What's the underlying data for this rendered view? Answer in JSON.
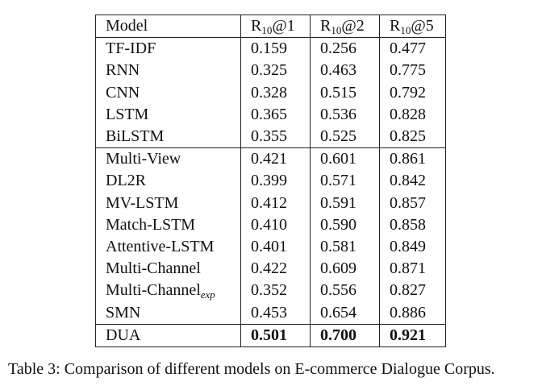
{
  "table": {
    "header": [
      {
        "main": "Model"
      },
      {
        "main": "R",
        "sub": "10",
        "tail": "@1"
      },
      {
        "main": "R",
        "sub": "10",
        "tail": "@2"
      },
      {
        "main": "R",
        "sub": "10",
        "tail": "@5"
      }
    ],
    "groups": [
      [
        [
          {
            "main": "TF-IDF"
          },
          "0.159",
          "0.256",
          "0.477"
        ],
        [
          {
            "main": "RNN"
          },
          "0.325",
          "0.463",
          "0.775"
        ],
        [
          {
            "main": "CNN"
          },
          "0.328",
          "0.515",
          "0.792"
        ],
        [
          {
            "main": "LSTM"
          },
          "0.365",
          "0.536",
          "0.828"
        ],
        [
          {
            "main": "BiLSTM"
          },
          "0.355",
          "0.525",
          "0.825"
        ]
      ],
      [
        [
          {
            "main": "Multi-View"
          },
          "0.421",
          "0.601",
          "0.861"
        ],
        [
          {
            "main": "DL2R"
          },
          "0.399",
          "0.571",
          "0.842"
        ],
        [
          {
            "main": "MV-LSTM"
          },
          "0.412",
          "0.591",
          "0.857"
        ],
        [
          {
            "main": "Match-LSTM"
          },
          "0.410",
          "0.590",
          "0.858"
        ],
        [
          {
            "main": "Attentive-LSTM"
          },
          "0.401",
          "0.581",
          "0.849"
        ],
        [
          {
            "main": "Multi-Channel"
          },
          "0.422",
          "0.609",
          "0.871"
        ],
        [
          {
            "main": "Multi-Channel",
            "sub": "exp"
          },
          "0.352",
          "0.556",
          "0.827"
        ],
        [
          {
            "main": "SMN"
          },
          "0.453",
          "0.654",
          "0.886"
        ]
      ],
      [
        [
          {
            "main": "DUA"
          },
          "0.501",
          "0.700",
          "0.921"
        ]
      ]
    ],
    "caption": "Table 3: Comparison of different models on E-commerce Dialogue Corpus."
  }
}
